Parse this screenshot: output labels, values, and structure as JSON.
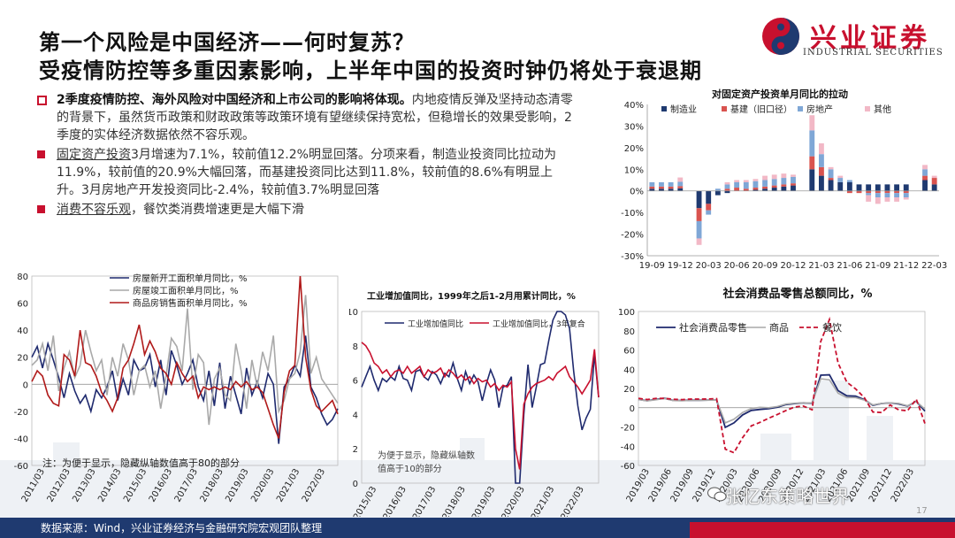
{
  "header": {
    "title_line1": "第一个风险是中国经济——何时复苏？",
    "title_line2": "受疫情防控等多重因素影响，上半年中国的投资时钟仍将处于衰退期",
    "logo_text": "兴业证券",
    "logo_sub": "INDUSTRIAL SECURITIES",
    "logo_icon": "industrial-securities-logo-icon"
  },
  "bullets": [
    {
      "bold": "2季度疫情防控、海外风险对中国经济和上市公司的影响将体现。",
      "text": "内地疫情反弹及坚持动态清零的背景下，虽然货币政策和财政政策等政策环境有望继续保持宽松，但稳增长的效果受影响，2季度的实体经济数据依然不容乐观。"
    },
    {
      "underline": "固定资产投资",
      "text": "3月增速为7.1%，较前值12.2%明显回落。分项来看，制造业投资同比拉动为11.9%，较前值的20.9%大幅回落，而基建投资同比达到11.8%，较前值的8.6%有明显上升。3月房地产开发投资同比-2.4%，较前值3.7%明显回落"
    },
    {
      "underline": "消费不容乐观",
      "text": "，餐饮类消费增速更是大幅下滑"
    }
  ],
  "colors": {
    "brand_red": "#c8102e",
    "navy": "#1f3a70",
    "manufacturing": "#1f3a70",
    "infrastructure": "#d9534f",
    "realestate": "#7fa7d6",
    "other": "#f2b8c6"
  },
  "footer": {
    "source": "数据来源：Wind，兴业证券经济与金融研究院宏观团队整理",
    "page": "17",
    "watermark": "张忆东策略世界"
  },
  "chart_data": [
    {
      "id": "fai",
      "type": "bar",
      "title": "对固定资产投资单月同比的拉动",
      "legend": [
        "制造业",
        "基建（旧口径）",
        "房地产",
        "其他"
      ],
      "legend_position": "top",
      "ylim": [
        -30,
        40
      ],
      "yticks": [
        "40%",
        "30%",
        "20%",
        "10%",
        "0%",
        "-10%",
        "-20%",
        "-30%"
      ],
      "xticks": [
        "19-09",
        "19-12",
        "20-03",
        "20-06",
        "20-09",
        "20-12",
        "21-03",
        "21-06",
        "21-09",
        "21-12",
        "22-03"
      ],
      "categories": [
        "19-09",
        "19-10",
        "19-11",
        "19-12",
        "20-01",
        "20-02",
        "20-03",
        "20-04",
        "20-05",
        "20-06",
        "20-07",
        "20-08",
        "20-09",
        "20-10",
        "20-11",
        "20-12",
        "21-01",
        "21-02",
        "21-03",
        "21-04",
        "21-05",
        "21-06",
        "21-07",
        "21-08",
        "21-09",
        "21-10",
        "21-11",
        "21-12",
        "22-01",
        "22-02",
        "22-03"
      ],
      "series": [
        {
          "name": "制造业",
          "values": [
            1,
            1,
            1,
            1.2,
            0,
            -8,
            -6,
            -2,
            -1,
            0,
            0,
            0.5,
            1,
            1.5,
            2,
            2.5,
            0,
            10,
            7,
            5,
            4,
            4,
            3,
            3,
            3,
            3,
            3,
            3,
            0,
            5,
            3
          ]
        },
        {
          "name": "基建（旧口径）",
          "values": [
            1,
            1,
            1,
            1,
            0,
            -6,
            -3,
            0,
            1,
            1.5,
            1,
            1,
            1,
            1,
            1,
            1,
            0,
            6,
            4,
            1,
            0,
            -1,
            -1,
            -1,
            -1,
            -1,
            -1,
            -1,
            0,
            2,
            3
          ]
        },
        {
          "name": "房地产",
          "values": [
            2,
            2,
            2,
            2,
            0,
            -8,
            -2,
            1,
            2,
            2.5,
            3,
            3,
            3,
            3,
            3,
            3,
            0,
            12,
            6,
            4,
            2,
            1,
            0,
            -1,
            -2,
            -2,
            -2,
            -2,
            0,
            3,
            0
          ]
        },
        {
          "name": "其他",
          "values": [
            0,
            0,
            0,
            2,
            0,
            -3,
            0,
            0,
            1,
            1,
            1,
            1,
            2,
            2,
            2,
            1,
            0,
            7,
            5,
            1,
            1,
            0,
            0,
            -3,
            -3,
            -2,
            -2,
            -1,
            0,
            2,
            1
          ]
        }
      ]
    },
    {
      "id": "realestate",
      "type": "line",
      "legend": [
        "房屋新开工面积单月同比，%",
        "房屋竣工面积单月同比，%",
        "商品房销售面积单月同比，%"
      ],
      "ylim": [
        -60,
        80
      ],
      "yticks": [
        "80",
        "60",
        "40",
        "20",
        "0",
        "-20",
        "-40",
        "-60"
      ],
      "xticks": [
        "2011/03",
        "2012/03",
        "2013/03",
        "2014/03",
        "2015/03",
        "2016/03",
        "2017/03",
        "2018/03",
        "2019/03",
        "2020/03",
        "2021/03",
        "2022/03"
      ],
      "note": "注：为便于显示，隐藏纵轴数值高于80的部分",
      "series": [
        {
          "name": "房屋新开工面积单月同比，%",
          "values": [
            20,
            28,
            12,
            30,
            18,
            5,
            -10,
            8,
            -5,
            -14,
            -8,
            -20,
            -4,
            -10,
            -2,
            10,
            -12,
            4,
            -8,
            18,
            10,
            12,
            22,
            -2,
            18,
            -8,
            25,
            14,
            0,
            8,
            18,
            -2,
            -12,
            10,
            -16,
            16,
            -18,
            6,
            -8,
            -22,
            12,
            -8,
            2,
            -10,
            8,
            0,
            -44,
            -2,
            4,
            14,
            6,
            36,
            -2,
            -10,
            -22,
            -30,
            -26,
            -18
          ]
        },
        {
          "name": "房屋竣工面积单月同比，%",
          "values": [
            14,
            18,
            30,
            10,
            36,
            -5,
            12,
            24,
            5,
            14,
            40,
            24,
            10,
            18,
            -8,
            20,
            6,
            30,
            18,
            -8,
            10,
            14,
            -2,
            10,
            -18,
            6,
            34,
            28,
            10,
            56,
            -4,
            22,
            16,
            -30,
            4,
            12,
            -8,
            -12,
            30,
            10,
            -18,
            18,
            -2,
            24,
            10,
            36,
            -20,
            -12,
            4,
            8,
            24,
            66,
            8,
            20,
            4,
            -2,
            -8,
            -14
          ]
        },
        {
          "name": "商品房销售面积单月同比，%",
          "values": [
            2,
            10,
            6,
            -8,
            -14,
            -16,
            22,
            18,
            6,
            40,
            16,
            14,
            6,
            -6,
            -12,
            -20,
            -10,
            12,
            18,
            30,
            44,
            22,
            32,
            24,
            12,
            8,
            0,
            16,
            8,
            2,
            6,
            -10,
            -2,
            -4,
            -2,
            -4,
            -2,
            -4,
            2,
            -2,
            2,
            -4,
            -2,
            -6,
            -18,
            -30,
            -40,
            -6,
            10,
            14,
            80,
            20,
            -4,
            -16,
            -20,
            -16,
            -12,
            -22
          ]
        }
      ]
    },
    {
      "id": "industry",
      "type": "line",
      "title": "工业增加值同比，1999年之后1-2月用累计同比，%",
      "legend": [
        "工业增加值同比",
        "工业增加值同比，3年复合"
      ],
      "ylim": [
        0,
        10
      ],
      "yticks": [
        "10",
        "8",
        "6",
        "4",
        "2",
        "0"
      ],
      "xticks": [
        "2015/03",
        "2016/03",
        "2017/03",
        "2018/03",
        "2019/03",
        "2020/03",
        "2021/03",
        "2022/03"
      ],
      "note": "为便于显示，隐藏纵轴数值高于10的部分",
      "series": [
        {
          "name": "工业增加值同比",
          "values": [
            5.6,
            6.2,
            6.8,
            6.0,
            5.4,
            6.1,
            5.9,
            6.2,
            6.0,
            6.8,
            6.1,
            6.0,
            5.4,
            6.5,
            6.6,
            6.2,
            6.0,
            6.5,
            6.3,
            5.8,
            6.4,
            6.2,
            7.0,
            6.1,
            5.4,
            6.5,
            5.8,
            6.3,
            5.9,
            4.8,
            5.8,
            6.6,
            6.0,
            4.4,
            5.6,
            5.7,
            6.2,
            0,
            0,
            4.0,
            6.9,
            4.4,
            5.6,
            6.9,
            7.0,
            8.3,
            9.5,
            10,
            10,
            9.8,
            9.0,
            6.5,
            4.5,
            3.1,
            3.8,
            4.3,
            7.5,
            5.0
          ]
        },
        {
          "name": "工业增加值同比，3年复合",
          "values": [
            8.2,
            8.0,
            7.6,
            7.0,
            6.8,
            6.4,
            6.6,
            6.2,
            6.5,
            6.6,
            6.4,
            6.8,
            6.4,
            6.6,
            6.8,
            6.2,
            6.6,
            6.4,
            6.5,
            6.7,
            6.2,
            6.6,
            6.4,
            6.1,
            6.3,
            6.0,
            6.2,
            5.8,
            6.1,
            5.9,
            6.0,
            5.6,
            5.8,
            5.4,
            5.7,
            5.6,
            5.9,
            2.0,
            0.8,
            4.6,
            5.2,
            5.6,
            5.8,
            5.9,
            6.0,
            6.2,
            6.0,
            6.4,
            6.6,
            6.8,
            6.2,
            5.9,
            5.6,
            5.2,
            5.6,
            6.0,
            7.8,
            5.0
          ]
        }
      ]
    },
    {
      "id": "retail",
      "type": "line",
      "title": "社会消费品零售总额同比，%",
      "legend": [
        "社会消费品零售",
        "商品",
        "餐饮"
      ],
      "ylim": [
        -60,
        100
      ],
      "yticks": [
        "100",
        "80",
        "60",
        "40",
        "20",
        "0",
        "-20",
        "-40",
        "-60"
      ],
      "xticks": [
        "2019/03",
        "2019/06",
        "2019/09",
        "2019/12",
        "2020/03",
        "2020/06",
        "2020/09",
        "2020/12",
        "2021/03",
        "2021/06",
        "2021/09",
        "2021/12",
        "2022/03"
      ],
      "series": [
        {
          "name": "社会消费品零售",
          "values": [
            8.7,
            7.2,
            8.6,
            9.8,
            7.6,
            7.5,
            7.8,
            7.8,
            8.0,
            8.0,
            -20.5,
            -15.8,
            -7.5,
            -2.8,
            -1.8,
            -1.1,
            0.5,
            3.3,
            4.3,
            5.0,
            4.6,
            33.8,
            34.2,
            17.7,
            12.4,
            12.1,
            8.5,
            2.5,
            4.4,
            4.9,
            3.9,
            1.7,
            6.7,
            -3.5
          ]
        },
        {
          "name": "商品",
          "values": [
            8.5,
            7.0,
            8.2,
            9.6,
            7.4,
            7.2,
            7.6,
            7.6,
            7.8,
            8.0,
            -15.8,
            -12.0,
            -5.0,
            -0.8,
            0.4,
            0.0,
            1.2,
            3.8,
            4.6,
            5.0,
            5.0,
            30.0,
            29.0,
            15.0,
            10.5,
            10.5,
            8.0,
            3.0,
            4.5,
            5.0,
            4.5,
            2.0,
            6.5,
            -1.5
          ]
        },
        {
          "name": "餐饮",
          "values": [
            9.7,
            8.5,
            9.6,
            9.7,
            8.8,
            8.4,
            9.0,
            9.0,
            9.1,
            9.4,
            -43.1,
            -46.8,
            -31.1,
            -18.9,
            -15.2,
            -11.0,
            -7.0,
            -2.9,
            0.8,
            1.7,
            -2.2,
            68.9,
            91.6,
            46.4,
            26.6,
            19.6,
            10.7,
            -4.5,
            -5.0,
            2.8,
            -2.3,
            -3.1,
            8.9,
            -16.4
          ]
        }
      ]
    }
  ]
}
